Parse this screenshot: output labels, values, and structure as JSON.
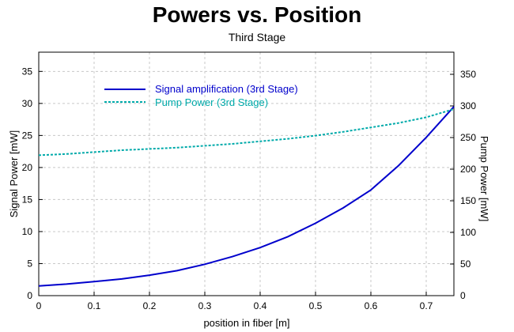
{
  "chart_data": {
    "type": "line",
    "title": "Powers vs. Position",
    "subtitle": "Third Stage",
    "xlabel": "position in fiber [m]",
    "ylabel_left": "Signal Power [mW]",
    "ylabel_right": "Pump Power [mW]",
    "xlim": [
      0,
      0.75
    ],
    "ylim_left": [
      0,
      38
    ],
    "ylim_right": [
      0,
      385
    ],
    "xticks": [
      "0",
      "0.1",
      "0.2",
      "0.3",
      "0.4",
      "0.5",
      "0.6",
      "0.7"
    ],
    "yticks_left": [
      "0",
      "5",
      "10",
      "15",
      "20",
      "25",
      "30",
      "35"
    ],
    "yticks_right": [
      "0",
      "50",
      "100",
      "150",
      "200",
      "250",
      "300",
      "350"
    ],
    "grid": true,
    "legend_position": "top-left",
    "series": [
      {
        "name": "Signal amplification (3rd Stage)",
        "axis": "left",
        "color": "#0000cc",
        "style": "solid",
        "x": [
          0,
          0.05,
          0.1,
          0.15,
          0.2,
          0.25,
          0.3,
          0.35,
          0.4,
          0.45,
          0.5,
          0.55,
          0.6,
          0.65,
          0.7,
          0.75
        ],
        "y": [
          1.5,
          1.8,
          2.2,
          2.6,
          3.2,
          3.9,
          4.9,
          6.1,
          7.5,
          9.2,
          11.3,
          13.7,
          16.5,
          20.3,
          24.7,
          29.5
        ]
      },
      {
        "name": "Pump Power (3rd Stage)",
        "axis": "right",
        "color": "#00aaaa",
        "style": "dashed",
        "x": [
          0,
          0.05,
          0.1,
          0.15,
          0.2,
          0.25,
          0.3,
          0.35,
          0.4,
          0.45,
          0.5,
          0.55,
          0.6,
          0.65,
          0.7,
          0.75
        ],
        "y": [
          222,
          224,
          227,
          230,
          232,
          234,
          237,
          240,
          244,
          248,
          253,
          259,
          266,
          273,
          282,
          295
        ]
      }
    ]
  }
}
